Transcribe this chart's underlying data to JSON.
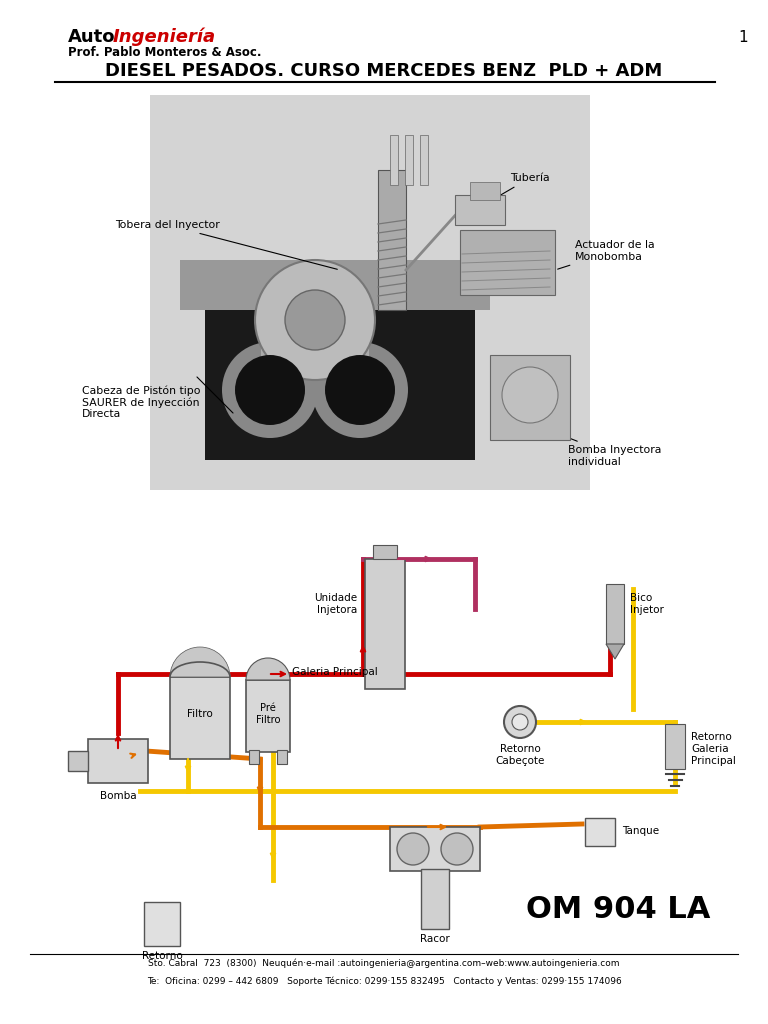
{
  "title_auto": "Auto",
  "title_ing": "Ingeniería",
  "subtitle": "Prof. Pablo Monteros & Asoc.",
  "main_title": "DIESEL PESADOS. CURSO MERCEDES BENZ  PLD + ADM",
  "page_num": "1",
  "model": "OM 904 LA",
  "footer1": "Sto. Cabral  723  (8300)  Neuquén·e-mail :autoingenieria@argentina.com–web:www.autoingenieria.com",
  "footer2": "Te:  Oficina: 0299 – 442 6809   Soporte Técnico: 0299·155 832495   Contacto y Ventas: 0299·155 174096",
  "bg_color": "#ffffff",
  "red_color": "#cc0000",
  "orange_color": "#e07000",
  "yellow_color": "#f5c800",
  "pink_color": "#b03060",
  "labels": {
    "tobera": "Tobera del Inyector",
    "tuberia": "Tubería",
    "actuador": "Actuador de la\nMonobomba",
    "cabeza": "Cabeza de Pistón tipo\nSAURER de Inyección\nDirecta",
    "bomba_iny": "Bomba Inyectora\nindividual",
    "unidade": "Unidade\nInjetora",
    "bico": "Bico\nInjetor",
    "galeria": "Galeria Principal",
    "filtro": "Filtro",
    "pre_filtro": "Pré\nFiltro",
    "bomba": "Bomba",
    "retorno_cab": "Retorno\nCabeçote",
    "retorno_gal": "Retorno\nGaleria\nPrincipal",
    "tanque": "Tanque",
    "racor": "Racor",
    "retorno": "Retorno"
  }
}
